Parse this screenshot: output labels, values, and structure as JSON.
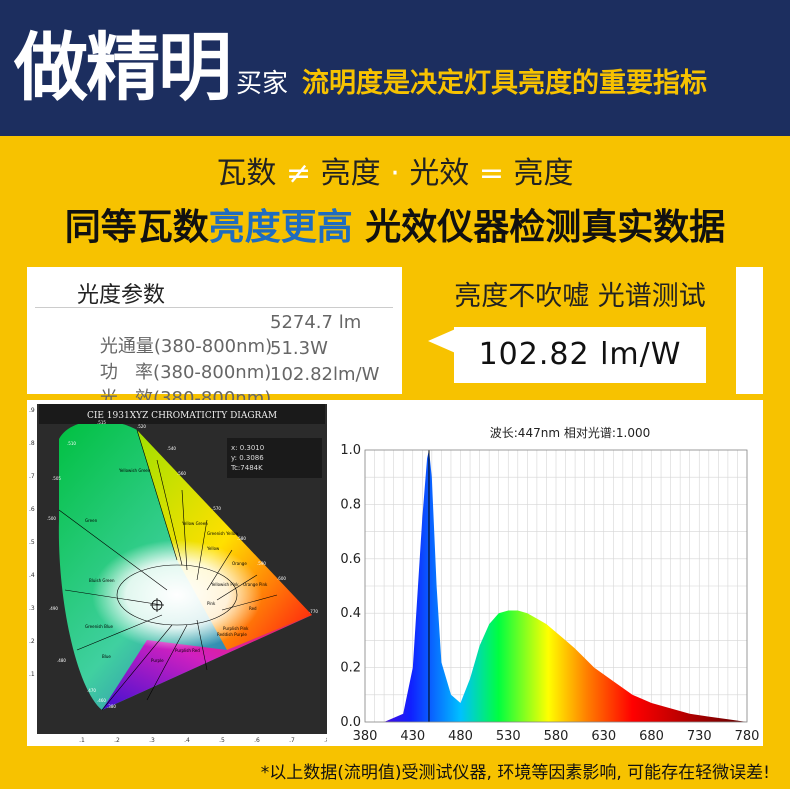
{
  "header": {
    "brand_big": "做精明",
    "brand_small": "买家",
    "slogan": "流明度是决定灯具亮度的重要指标"
  },
  "compare": {
    "a": "瓦数",
    "neq": "≠",
    "b": "亮度",
    "dot": "·",
    "c": "光效",
    "eq": "=",
    "d": "亮度"
  },
  "headline": {
    "part1": "同等瓦数",
    "part2": "亮度更高",
    "part3": " 光效仪器检测真实数据"
  },
  "params": {
    "title": "光度参数",
    "rows": [
      {
        "label": "光通量(380-800nm)",
        "value": "5274.7 lm"
      },
      {
        "label": "功   率(380-800nm)",
        "value": "51.3W"
      },
      {
        "label": "光   效(380-800nm)",
        "value": "102.82lm/W"
      }
    ]
  },
  "test": {
    "title": "亮度不吹嘘 光谱测试",
    "value": "102.82  lm/W"
  },
  "cie": {
    "title": "CIE 1931XYZ CHROMATICITY DIAGRAM",
    "x": "x: 0.3010",
    "y": "y: 0.3086",
    "tc": "Tc:7484K",
    "xticks": [
      ".1",
      ".2",
      ".3",
      ".4",
      ".5",
      ".6",
      ".7",
      ".8"
    ],
    "yticks": [
      ".9",
      ".8",
      ".7",
      ".6",
      ".5",
      ".4",
      ".3",
      ".2",
      ".1"
    ],
    "regions": [
      "Green",
      "Yellowish Green",
      "Yellow Green",
      "Greenish Yellow",
      "Yellow",
      "Orange",
      "Bluish Green",
      "Greenish Blue",
      "Blue",
      "Pink",
      "Red",
      "Purplish Pink",
      "Purple",
      "Reddish Purple",
      "Purplish Red",
      "Yellowish Pink",
      "Orange Pink"
    ],
    "wavelengths": [
      ".500",
      ".505",
      ".510",
      ".515",
      ".520",
      ".540",
      ".560",
      ".570",
      ".580",
      ".590",
      ".600",
      ".770",
      ".490",
      ".480",
      ".470",
      ".460",
      ".380"
    ]
  },
  "spectrum": {
    "annotation": "波长:447nm  相对光谱:1.000",
    "xticks": [
      "380",
      "430",
      "480",
      "530",
      "580",
      "630",
      "680",
      "730",
      "780"
    ],
    "yticks": [
      "0.0",
      "0.2",
      "0.4",
      "0.6",
      "0.8",
      "1.0"
    ]
  },
  "chart_data": {
    "type": "area",
    "x": [
      380,
      400,
      420,
      430,
      440,
      445,
      447,
      450,
      455,
      460,
      470,
      480,
      490,
      500,
      510,
      520,
      530,
      540,
      550,
      560,
      570,
      580,
      590,
      600,
      620,
      640,
      660,
      680,
      700,
      720,
      740,
      760,
      780
    ],
    "series": [
      {
        "values": [
          0.0,
          0.0,
          0.03,
          0.2,
          0.75,
          0.97,
          1.0,
          0.9,
          0.5,
          0.22,
          0.1,
          0.07,
          0.16,
          0.28,
          0.36,
          0.4,
          0.41,
          0.41,
          0.4,
          0.38,
          0.36,
          0.33,
          0.3,
          0.27,
          0.2,
          0.15,
          0.1,
          0.07,
          0.05,
          0.03,
          0.02,
          0.01,
          0.0
        ]
      }
    ],
    "xlim": [
      380,
      780
    ],
    "ylim": [
      0.0,
      1.0
    ],
    "grid": true
  },
  "footer": {
    "text": "*以上数据(流明值)受测试仪器, 环境等因素影响, 可能存在轻微误差!"
  },
  "colors": {
    "navy": "#1c2e5f",
    "yellow": "#f7c200",
    "blue_text": "#1f6cc0",
    "white": "#ffffff"
  }
}
